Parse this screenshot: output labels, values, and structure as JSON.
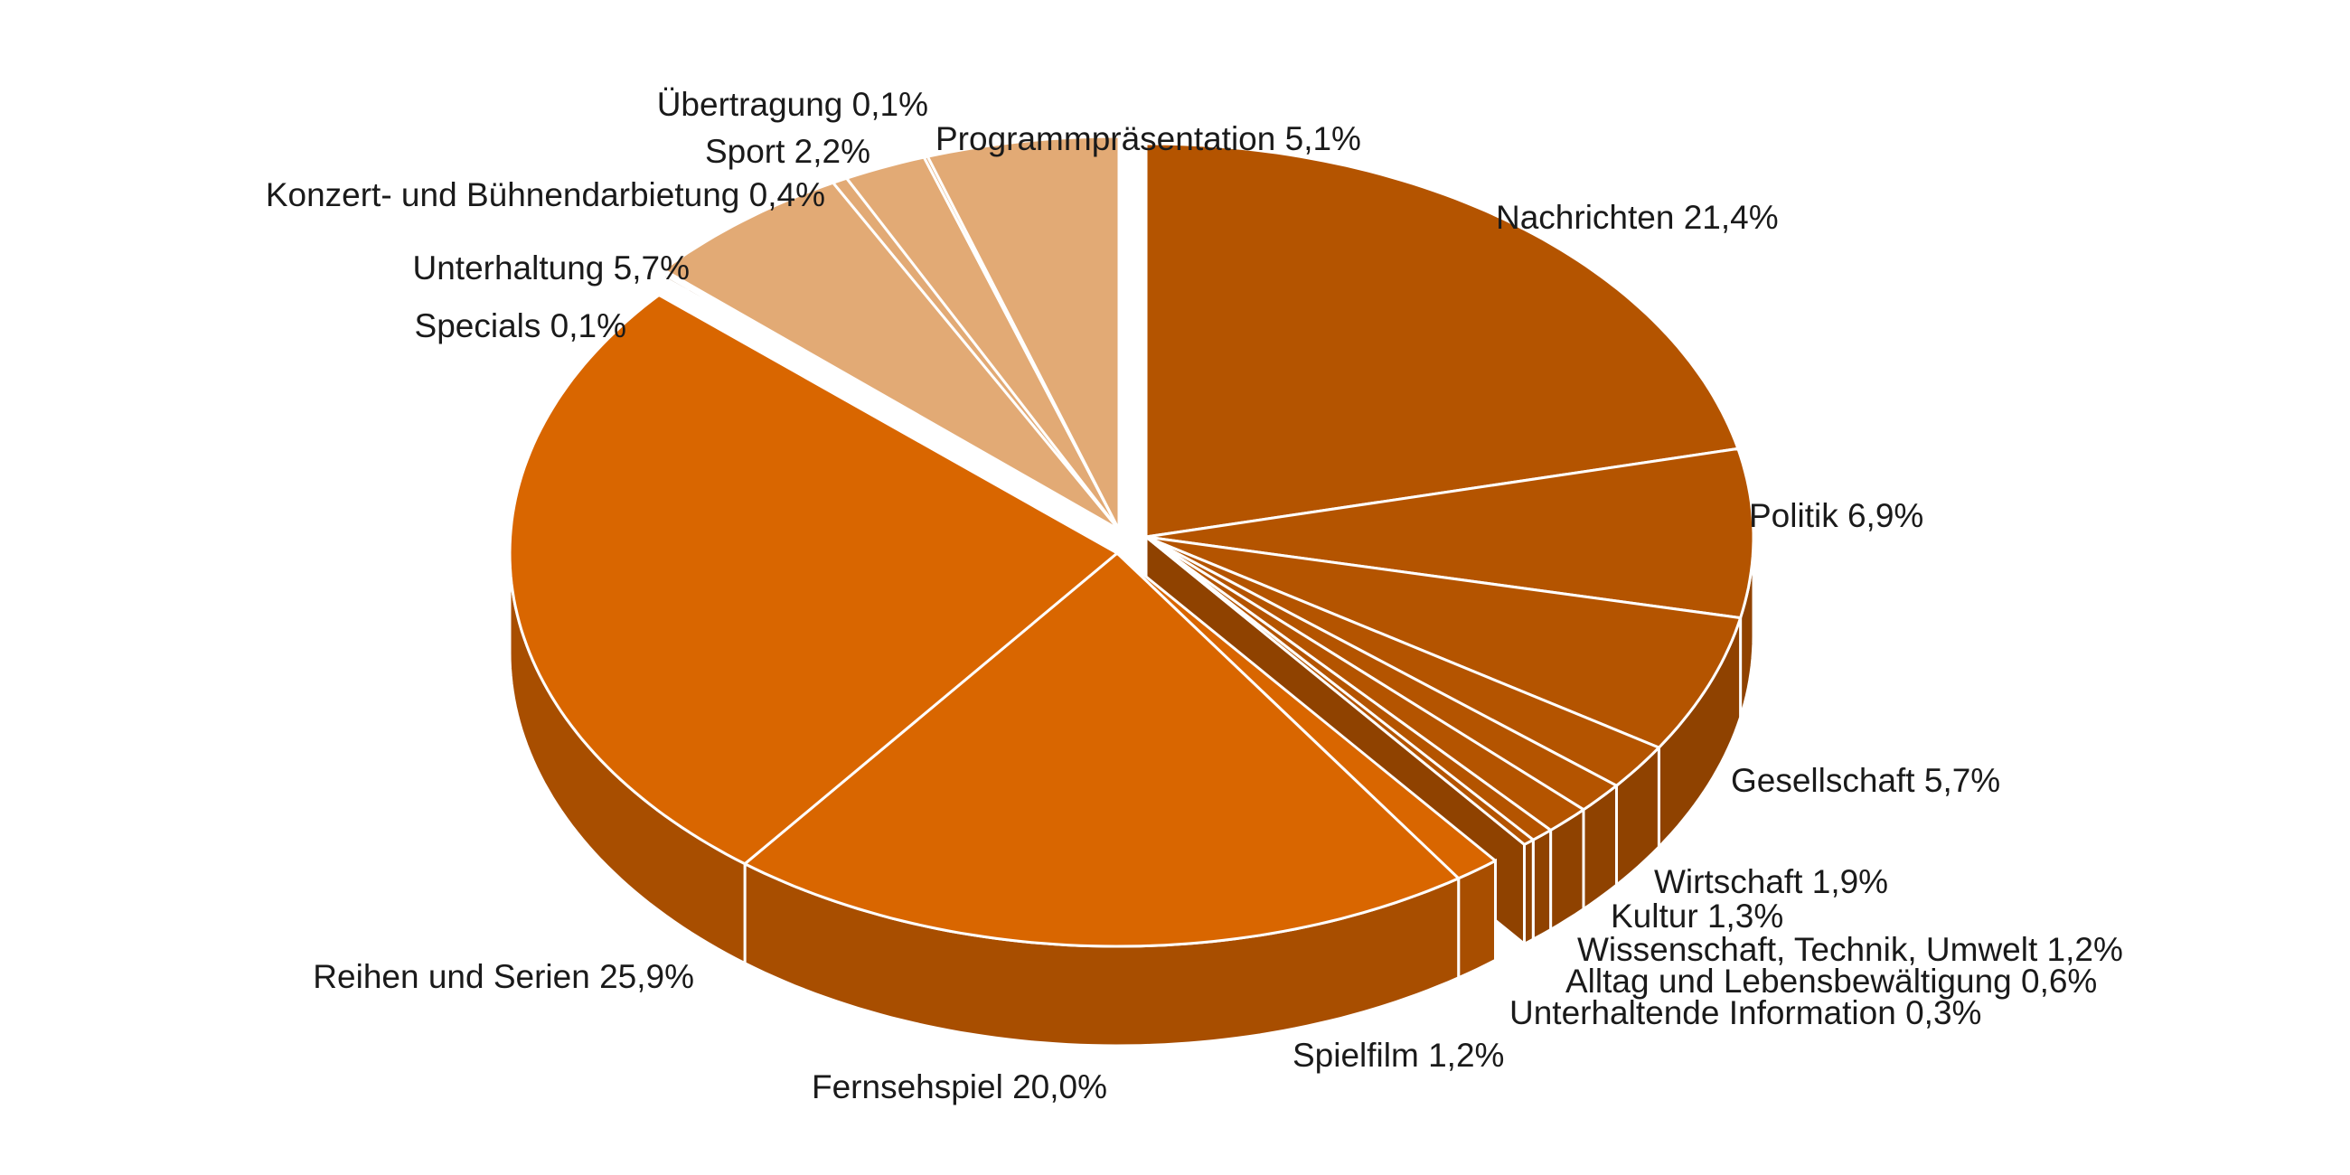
{
  "chart_data": {
    "type": "pie",
    "style": "3d-exploded",
    "slices": [
      {
        "label": "Nachrichten",
        "value": 21.4,
        "value_text": "21,4%",
        "color": "#b45400",
        "side": "#8f4200"
      },
      {
        "label": "Politik",
        "value": 6.9,
        "value_text": "6,9%",
        "color": "#b45400",
        "side": "#8f4200"
      },
      {
        "label": "Gesellschaft",
        "value": 5.7,
        "value_text": "5,7%",
        "color": "#b45400",
        "side": "#8f4200"
      },
      {
        "label": "Wirtschaft",
        "value": 1.9,
        "value_text": "1,9%",
        "color": "#b45400",
        "side": "#8f4200"
      },
      {
        "label": "Kultur",
        "value": 1.3,
        "value_text": "1,3%",
        "color": "#b45400",
        "side": "#8f4200"
      },
      {
        "label": "Wissenschaft, Technik, Umwelt",
        "value": 1.2,
        "value_text": "1,2%",
        "color": "#b45400",
        "side": "#8f4200"
      },
      {
        "label": "Alltag und Lebensbewältigung",
        "value": 0.6,
        "value_text": "0,6%",
        "color": "#b45400",
        "side": "#8f4200"
      },
      {
        "label": "Unterhaltende Information",
        "value": 0.3,
        "value_text": "0,3%",
        "color": "#b45400",
        "side": "#8f4200"
      },
      {
        "label": "Spielfilm",
        "value": 1.2,
        "value_text": "1,2%",
        "color": "#d96600",
        "side": "#a84e00"
      },
      {
        "label": "Fernsehspiel",
        "value": 20.0,
        "value_text": "20,0%",
        "color": "#d96600",
        "side": "#a84e00"
      },
      {
        "label": "Reihen und Serien",
        "value": 25.9,
        "value_text": "25,9%",
        "color": "#d96600",
        "side": "#a84e00"
      },
      {
        "label": "Specials",
        "value": 0.1,
        "value_text": "0,1%",
        "color": "#9e7a55",
        "side": "#80603f"
      },
      {
        "label": "Unterhaltung",
        "value": 5.7,
        "value_text": "5,7%",
        "color": "#e2aa75",
        "side": "#c48a55"
      },
      {
        "label": "Konzert- und Bühnendarbietung",
        "value": 0.4,
        "value_text": "0,4%",
        "color": "#e2aa75",
        "side": "#c48a55"
      },
      {
        "label": "Sport",
        "value": 2.2,
        "value_text": "2,2%",
        "color": "#e2aa75",
        "side": "#c48a55"
      },
      {
        "label": "Übertragung",
        "value": 0.1,
        "value_text": "0,1%",
        "color": "#e2aa75",
        "side": "#c48a55"
      },
      {
        "label": "Programmpräsentation",
        "value": 5.1,
        "value_text": "5,1%",
        "color": "#e2aa75",
        "side": "#c48a55"
      }
    ],
    "start_position": "top",
    "direction": "clockwise",
    "legend": "none",
    "title": ""
  }
}
